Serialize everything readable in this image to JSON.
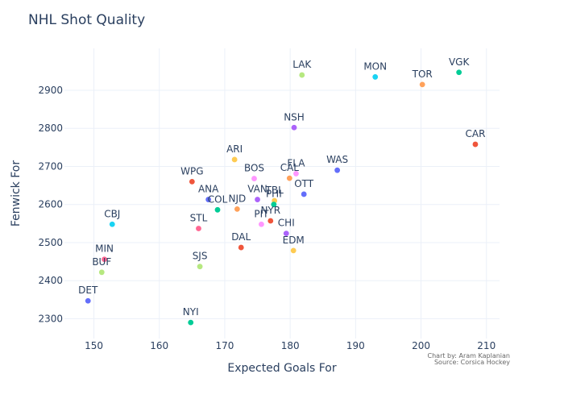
{
  "chart_data": {
    "type": "scatter",
    "title": "NHL Shot Quality",
    "xlabel": "Expected Goals For",
    "ylabel": "Fenwick For",
    "xlim": [
      145.5,
      212
    ],
    "ylim": [
      2248,
      3010
    ],
    "xticks": [
      150,
      160,
      170,
      180,
      190,
      200,
      210
    ],
    "yticks": [
      2300,
      2400,
      2500,
      2600,
      2700,
      2800,
      2900
    ],
    "grid": true,
    "legend": "none",
    "credit_lines": [
      "Chart by: Aram Kaplanian",
      "Source: Corsica Hockey"
    ],
    "points": [
      {
        "label": "LAK",
        "x": 181.8,
        "y": 2940,
        "color": "#B6E880"
      },
      {
        "label": "MON",
        "x": 193.0,
        "y": 2935,
        "color": "#19D3F3"
      },
      {
        "label": "TOR",
        "x": 200.2,
        "y": 2915,
        "color": "#FFA15A"
      },
      {
        "label": "VGK",
        "x": 205.8,
        "y": 2947,
        "color": "#00CC96"
      },
      {
        "label": "NSH",
        "x": 180.6,
        "y": 2802,
        "color": "#AB63FA"
      },
      {
        "label": "CAR",
        "x": 208.3,
        "y": 2758,
        "color": "#EF553B"
      },
      {
        "label": "ARI",
        "x": 171.5,
        "y": 2718,
        "color": "#FECB52"
      },
      {
        "label": "WAS",
        "x": 187.2,
        "y": 2690,
        "color": "#636EFA"
      },
      {
        "label": "WPG",
        "x": 165.0,
        "y": 2660,
        "color": "#EF553B"
      },
      {
        "label": "BOS",
        "x": 174.5,
        "y": 2668,
        "color": "#FF97FF"
      },
      {
        "label": "FLA",
        "x": 180.9,
        "y": 2681,
        "color": "#FF97FF"
      },
      {
        "label": "CAL",
        "x": 179.9,
        "y": 2669,
        "color": "#FFA15A"
      },
      {
        "label": "OTT",
        "x": 182.1,
        "y": 2627,
        "color": "#636EFA"
      },
      {
        "label": "ANA",
        "x": 167.5,
        "y": 2613,
        "color": "#636EFA"
      },
      {
        "label": "VAN",
        "x": 175.0,
        "y": 2613,
        "color": "#AB63FA"
      },
      {
        "label": "TBL",
        "x": 177.6,
        "y": 2610,
        "color": "#FECB52"
      },
      {
        "label": "PHI",
        "x": 177.5,
        "y": 2600,
        "color": "#00CC96"
      },
      {
        "label": "COL",
        "x": 168.9,
        "y": 2586,
        "color": "#00CC96"
      },
      {
        "label": "NJD",
        "x": 171.9,
        "y": 2588,
        "color": "#FFA15A"
      },
      {
        "label": "NYR",
        "x": 177.0,
        "y": 2557,
        "color": "#EF553B"
      },
      {
        "label": "PIT",
        "x": 175.6,
        "y": 2548,
        "color": "#FF97FF"
      },
      {
        "label": "CBJ",
        "x": 152.8,
        "y": 2548,
        "color": "#19D3F3"
      },
      {
        "label": "STL",
        "x": 166.0,
        "y": 2537,
        "color": "#FF6692"
      },
      {
        "label": "CHI",
        "x": 179.4,
        "y": 2524,
        "color": "#AB63FA"
      },
      {
        "label": "DAL",
        "x": 172.5,
        "y": 2487,
        "color": "#EF553B"
      },
      {
        "label": "EDM",
        "x": 180.5,
        "y": 2479,
        "color": "#FECB52"
      },
      {
        "label": "MIN",
        "x": 151.6,
        "y": 2456,
        "color": "#FF6692"
      },
      {
        "label": "SJS",
        "x": 166.2,
        "y": 2437,
        "color": "#B6E880"
      },
      {
        "label": "BUF",
        "x": 151.2,
        "y": 2422,
        "color": "#B6E880"
      },
      {
        "label": "DET",
        "x": 149.1,
        "y": 2347,
        "color": "#636EFA"
      },
      {
        "label": "NYI",
        "x": 164.8,
        "y": 2290,
        "color": "#00CC96"
      }
    ]
  }
}
